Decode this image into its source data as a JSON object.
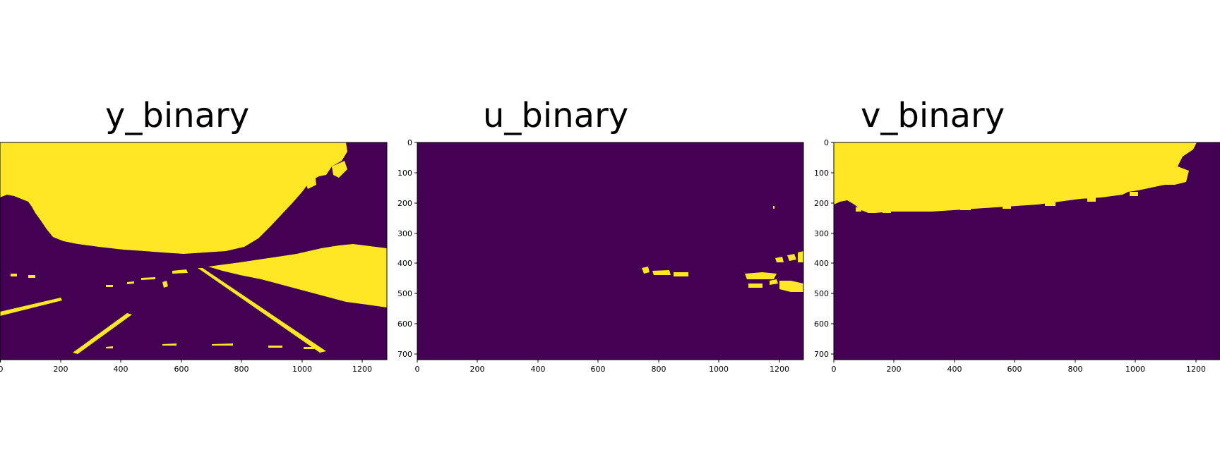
{
  "colors": {
    "background": "#440154",
    "foreground": "#fde725"
  },
  "panels": [
    {
      "title": "y_binary",
      "x_ticks": [
        "0",
        "200",
        "400",
        "600",
        "800",
        "1000",
        "1200"
      ],
      "y_ticks": []
    },
    {
      "title": "u_binary",
      "x_ticks": [
        "0",
        "200",
        "400",
        "600",
        "800",
        "1000",
        "1200"
      ],
      "y_ticks": [
        "0",
        "100",
        "200",
        "300",
        "400",
        "500",
        "600",
        "700"
      ]
    },
    {
      "title": "v_binary",
      "x_ticks": [
        "0",
        "200",
        "400",
        "600",
        "800",
        "1000",
        "1200"
      ],
      "y_ticks": [
        "0",
        "100",
        "200",
        "300",
        "400",
        "500",
        "600",
        "700"
      ]
    }
  ]
}
